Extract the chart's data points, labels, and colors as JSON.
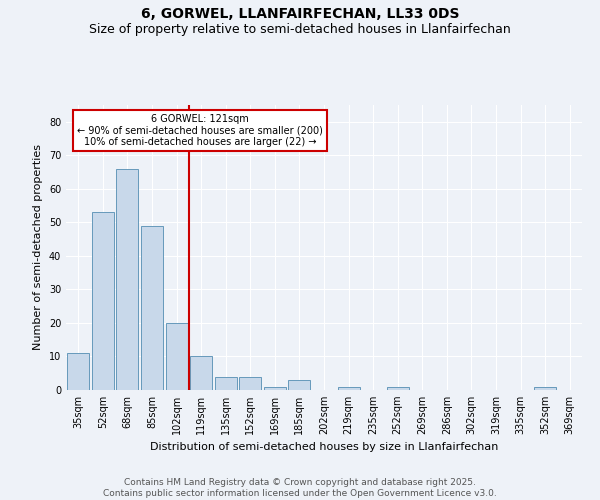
{
  "title": "6, GORWEL, LLANFAIRFECHAN, LL33 0DS",
  "subtitle": "Size of property relative to semi-detached houses in Llanfairfechan",
  "xlabel": "Distribution of semi-detached houses by size in Llanfairfechan",
  "ylabel": "Number of semi-detached properties",
  "categories": [
    "35sqm",
    "52sqm",
    "68sqm",
    "85sqm",
    "102sqm",
    "119sqm",
    "135sqm",
    "152sqm",
    "169sqm",
    "185sqm",
    "202sqm",
    "219sqm",
    "235sqm",
    "252sqm",
    "269sqm",
    "286sqm",
    "302sqm",
    "319sqm",
    "335sqm",
    "352sqm",
    "369sqm"
  ],
  "values": [
    11,
    53,
    66,
    49,
    20,
    10,
    4,
    4,
    1,
    3,
    0,
    1,
    0,
    1,
    0,
    0,
    0,
    0,
    0,
    1,
    0
  ],
  "bar_color": "#c8d8ea",
  "bar_edge_color": "#6699bb",
  "vline_index": 5,
  "vline_color": "#cc0000",
  "annotation_text": "6 GORWEL: 121sqm\n← 90% of semi-detached houses are smaller (200)\n10% of semi-detached houses are larger (22) →",
  "annotation_box_color": "#ffffff",
  "annotation_box_edge": "#cc0000",
  "ylim": [
    0,
    85
  ],
  "yticks": [
    0,
    10,
    20,
    30,
    40,
    50,
    60,
    70,
    80
  ],
  "footer": "Contains HM Land Registry data © Crown copyright and database right 2025.\nContains public sector information licensed under the Open Government Licence v3.0.",
  "bg_color": "#eef2f8",
  "plot_bg_color": "#eef2f8",
  "title_fontsize": 10,
  "subtitle_fontsize": 9,
  "axis_label_fontsize": 8,
  "tick_fontsize": 7,
  "footer_fontsize": 6.5,
  "annotation_fontsize": 7
}
